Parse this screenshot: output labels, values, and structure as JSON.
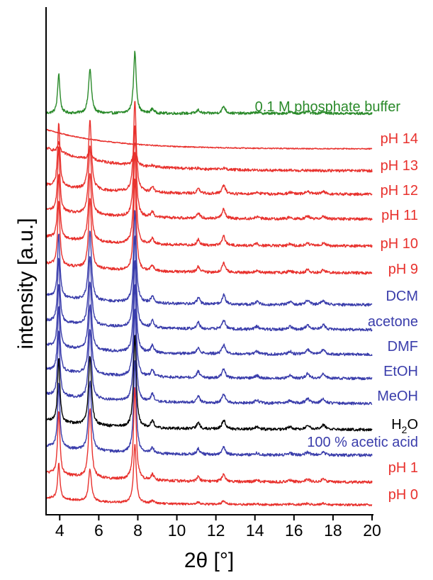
{
  "chart_data": {
    "type": "line",
    "title": "",
    "xlabel": "2θ [°]",
    "ylabel": "intensity [a.u.]",
    "xlim": [
      3.3,
      20
    ],
    "xticks": [
      4,
      6,
      8,
      10,
      12,
      14,
      16,
      18,
      20
    ],
    "yticks": "none",
    "grid": false,
    "legend": "none (series labeled inline at right)",
    "colors": {
      "acid": "#e8312d",
      "solvent": "#3a3dab",
      "water": "#000000",
      "phosphate": "#2a8a2a"
    },
    "peak_positions": [
      3.95,
      5.55,
      7.85,
      8.75,
      11.1,
      12.4,
      14.1,
      15.8,
      16.7,
      17.5
    ],
    "series": [
      {
        "name": "0.1 M phosphate buffer",
        "color_key": "phosphate",
        "peak_heights": [
          0.45,
          0.5,
          0.7,
          0.05,
          0.04,
          0.08,
          0.015,
          0.015,
          0.02,
          0.02
        ],
        "amorphous_decay": 0.0
      },
      {
        "name": "pH 14",
        "color_key": "acid",
        "peak_heights": [
          0,
          0,
          0,
          0,
          0,
          0,
          0,
          0,
          0,
          0
        ],
        "amorphous_decay": 0.55
      },
      {
        "name": "pH 13",
        "color_key": "acid",
        "peak_heights": [
          0.1,
          0.1,
          0.25,
          0.015,
          0.01,
          0.02,
          0,
          0,
          0,
          0
        ],
        "amorphous_decay": 0.25
      },
      {
        "name": "pH 12",
        "color_key": "acid",
        "peak_heights": [
          0.7,
          0.75,
          1.0,
          0.06,
          0.05,
          0.09,
          0.02,
          0.02,
          0.03,
          0.03
        ],
        "amorphous_decay": 0.1
      },
      {
        "name": "pH 11",
        "color_key": "acid",
        "peak_heights": [
          0.7,
          0.75,
          1.0,
          0.06,
          0.06,
          0.1,
          0.02,
          0.02,
          0.03,
          0.03
        ],
        "amorphous_decay": 0.1
      },
      {
        "name": "pH 10",
        "color_key": "acid",
        "peak_heights": [
          0.7,
          0.75,
          1.0,
          0.06,
          0.06,
          0.1,
          0.02,
          0.02,
          0.03,
          0.03
        ],
        "amorphous_decay": 0.1
      },
      {
        "name": "pH 9",
        "color_key": "acid",
        "peak_heights": [
          0.7,
          0.75,
          1.0,
          0.06,
          0.06,
          0.1,
          0.02,
          0.02,
          0.03,
          0.03
        ],
        "amorphous_decay": 0.1
      },
      {
        "name": "DCM",
        "color_key": "solvent",
        "peak_heights": [
          0.7,
          0.75,
          1.0,
          0.08,
          0.07,
          0.1,
          0.03,
          0.03,
          0.05,
          0.05
        ],
        "amorphous_decay": 0.1
      },
      {
        "name": "acetone",
        "color_key": "solvent",
        "peak_heights": [
          0.7,
          0.75,
          1.0,
          0.08,
          0.07,
          0.1,
          0.03,
          0.03,
          0.05,
          0.05
        ],
        "amorphous_decay": 0.1
      },
      {
        "name": "DMF",
        "color_key": "solvent",
        "peak_heights": [
          0.7,
          0.75,
          1.0,
          0.08,
          0.07,
          0.1,
          0.03,
          0.03,
          0.05,
          0.05
        ],
        "amorphous_decay": 0.1
      },
      {
        "name": "EtOH",
        "color_key": "solvent",
        "peak_heights": [
          0.7,
          0.75,
          1.0,
          0.08,
          0.07,
          0.1,
          0.03,
          0.03,
          0.05,
          0.05
        ],
        "amorphous_decay": 0.1
      },
      {
        "name": "MeOH",
        "color_key": "solvent",
        "peak_heights": [
          0.7,
          0.75,
          1.0,
          0.08,
          0.07,
          0.1,
          0.03,
          0.03,
          0.05,
          0.05
        ],
        "amorphous_decay": 0.1
      },
      {
        "name": "H2O",
        "color_key": "water",
        "peak_heights": [
          0.7,
          0.75,
          1.0,
          0.08,
          0.07,
          0.1,
          0.03,
          0.03,
          0.05,
          0.05
        ],
        "amorphous_decay": 0.1
      },
      {
        "name": "100 % acetic acid",
        "color_key": "solvent",
        "peak_heights": [
          0.7,
          0.75,
          1.0,
          0.06,
          0.06,
          0.08,
          0.02,
          0.02,
          0.03,
          0.03
        ],
        "amorphous_decay": 0.1
      },
      {
        "name": "pH 1",
        "color_key": "acid",
        "peak_heights": [
          0.7,
          0.75,
          1.0,
          0.06,
          0.05,
          0.08,
          0.02,
          0.02,
          0.03,
          0.03
        ],
        "amorphous_decay": 0.1
      },
      {
        "name": "pH 0",
        "color_key": "acid",
        "peak_heights": [
          0.5,
          0.45,
          0.85,
          0.04,
          0.03,
          0.05,
          0.01,
          0.01,
          0.02,
          0.02
        ],
        "amorphous_decay": 0.1
      }
    ]
  }
}
